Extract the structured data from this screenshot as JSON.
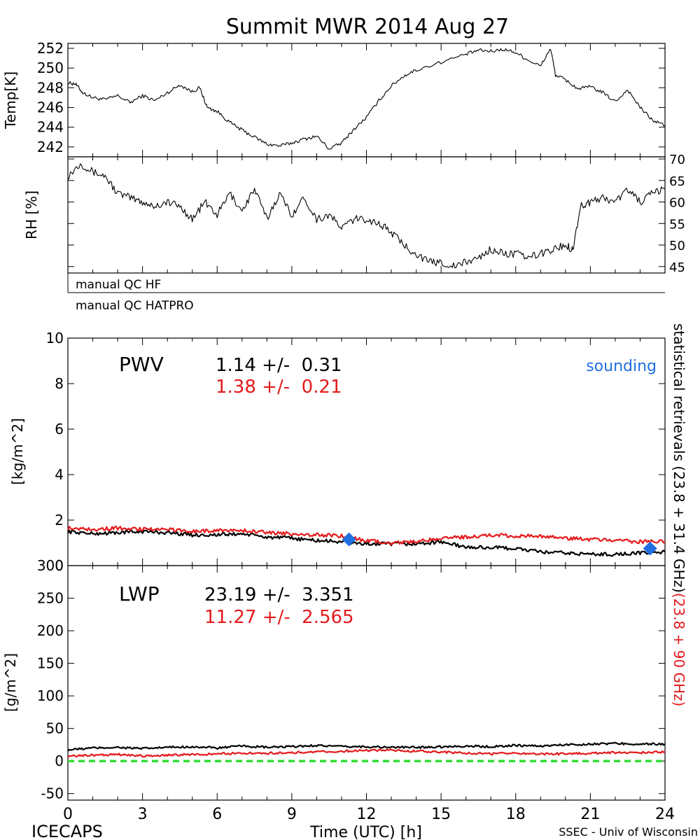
{
  "title": "Summit MWR 2014 Aug 27",
  "footer": {
    "left": "ICECAPS",
    "right": "SSEC - Univ of Wisconsin"
  },
  "qc": {
    "hf_label": "manual QC HF",
    "hatpro_label": "manual QC HATPRO"
  },
  "right_axis_label": {
    "black_part": "statistical retrievals (23.8 + 31.4 GHz)",
    "red_part": "(23.8 + 90 GHz)"
  },
  "colors": {
    "black": "#000000",
    "red": "#e41a1c",
    "blue": "#1f6fe0",
    "green": "#33dd33"
  },
  "chart_data": [
    {
      "id": "temp",
      "type": "line",
      "ylabel": "Temp[K]",
      "xlim": [
        0,
        24
      ],
      "ylim": [
        241,
        252.5
      ],
      "yticks": [
        242,
        244,
        246,
        248,
        250,
        252
      ],
      "series": [
        {
          "x": [
            0,
            0.3,
            0.6,
            1,
            1.5,
            2,
            2.5,
            3,
            3.5,
            4,
            4.5,
            5,
            5.3,
            5.6,
            6,
            6.5,
            7,
            7.5,
            8,
            8.5,
            9,
            9.5,
            10,
            10.5,
            11,
            11.5,
            12,
            12.5,
            13,
            13.5,
            14,
            15,
            16,
            16.5,
            17,
            17.5,
            18,
            18.5,
            19,
            19.4,
            19.6,
            20,
            20.5,
            21,
            21.5,
            22,
            22.5,
            23,
            23.5,
            24
          ],
          "y": [
            248.5,
            248.4,
            247.5,
            247,
            246.8,
            247.2,
            246.5,
            247.2,
            246.7,
            247.5,
            248.3,
            247.6,
            248,
            246,
            245.6,
            244.5,
            243.7,
            243,
            242.3,
            242.1,
            242.4,
            242.8,
            243.1,
            241.8,
            242.4,
            243.8,
            245,
            246.7,
            248.2,
            249.2,
            249.8,
            250.6,
            251.4,
            251.8,
            251.7,
            251.9,
            251.6,
            250.8,
            250.2,
            252,
            249.3,
            248.8,
            247.9,
            248.1,
            247.5,
            246.6,
            247.8,
            246,
            244.7,
            244.2
          ]
        }
      ]
    },
    {
      "id": "rh",
      "type": "line",
      "ylabel": "RH [%]",
      "xlim": [
        0,
        24
      ],
      "ylim": [
        43.5,
        70.5
      ],
      "yticks": [
        45,
        50,
        55,
        60,
        65,
        70
      ],
      "series": [
        {
          "x": [
            0,
            0.5,
            1,
            1.5,
            2,
            2.5,
            3,
            3.5,
            4,
            4.5,
            5,
            5.5,
            6,
            6.5,
            7,
            7.5,
            8,
            8.5,
            9,
            9.5,
            10,
            10.5,
            11,
            11.5,
            12,
            12.5,
            13,
            13.5,
            14,
            14.5,
            15,
            15.5,
            16,
            16.5,
            17,
            17.5,
            18,
            18.5,
            19,
            19.5,
            20,
            20.3,
            20.6,
            21,
            21.5,
            22,
            22.5,
            23,
            23.5,
            24
          ],
          "y": [
            66,
            69,
            67,
            66,
            62,
            61,
            60,
            59,
            60,
            59,
            56,
            60,
            57,
            62,
            58,
            63,
            56,
            62,
            57,
            61,
            56,
            57,
            54,
            56,
            56,
            55,
            53,
            50,
            48,
            46,
            46,
            45,
            46,
            47,
            49,
            48,
            48,
            47,
            48,
            49,
            50,
            49,
            59,
            60,
            61,
            60,
            63,
            60,
            62,
            63
          ]
        }
      ]
    },
    {
      "id": "pwv",
      "type": "line",
      "ylabel": "[kg/m^2]",
      "xlim": [
        0,
        24
      ],
      "ylim": [
        0,
        10
      ],
      "yticks": [
        0,
        2,
        4,
        6,
        8,
        10
      ],
      "annotations": {
        "name": "PWV",
        "black_stat": "1.14 +/-  0.31",
        "red_stat": "1.38 +/-  0.21",
        "sounding_label": "sounding"
      },
      "series": [
        {
          "color": "black",
          "x": [
            0,
            1,
            2,
            3,
            4,
            5,
            6,
            7,
            8,
            9,
            10,
            11,
            12,
            13,
            14,
            15,
            16,
            17,
            18,
            19,
            20,
            21,
            22,
            23,
            24
          ],
          "y": [
            1.5,
            1.4,
            1.45,
            1.5,
            1.45,
            1.35,
            1.35,
            1.4,
            1.25,
            1.2,
            1.1,
            1.05,
            0.95,
            0.95,
            0.95,
            1.05,
            0.8,
            0.8,
            0.75,
            0.6,
            0.55,
            0.5,
            0.5,
            0.55,
            0.6
          ]
        },
        {
          "color": "red",
          "x": [
            0,
            1,
            2,
            3,
            4,
            5,
            6,
            7,
            8,
            9,
            10,
            11,
            12,
            13,
            14,
            15,
            16,
            17,
            18,
            19,
            20,
            21,
            22,
            23,
            24
          ],
          "y": [
            1.65,
            1.6,
            1.65,
            1.6,
            1.6,
            1.5,
            1.55,
            1.55,
            1.45,
            1.4,
            1.35,
            1.3,
            1.1,
            1.0,
            1.05,
            1.2,
            1.25,
            1.35,
            1.3,
            1.3,
            1.2,
            1.15,
            1.1,
            1.05,
            1.05
          ]
        }
      ],
      "soundings": [
        {
          "x": 11.3,
          "y": 1.15
        },
        {
          "x": 23.4,
          "y": 0.75
        }
      ]
    },
    {
      "id": "lwp",
      "type": "line",
      "ylabel": "[g/m^2]",
      "xlabel": "Time (UTC) [h]",
      "xlim": [
        0,
        24
      ],
      "xticks": [
        0,
        3,
        6,
        9,
        12,
        15,
        18,
        21,
        24
      ],
      "ylim": [
        -60,
        300
      ],
      "yticks": [
        -50,
        0,
        50,
        100,
        150,
        200,
        250,
        300
      ],
      "annotations": {
        "name": "LWP",
        "black_stat": "23.19 +/-  3.351",
        "red_stat": "11.27 +/-  2.565"
      },
      "series": [
        {
          "color": "black",
          "x": [
            0,
            1,
            2,
            3,
            4,
            5,
            6,
            7,
            8,
            9,
            10,
            11,
            12,
            13,
            14,
            15,
            16,
            17,
            18,
            19,
            20,
            21,
            22,
            23,
            24
          ],
          "y": [
            17,
            20,
            21,
            19,
            21,
            22,
            20,
            23,
            21,
            22,
            24,
            22,
            22,
            21,
            21,
            22,
            23,
            22,
            24,
            23,
            25,
            26,
            27,
            26,
            26
          ]
        },
        {
          "color": "red",
          "x": [
            0,
            1,
            2,
            3,
            4,
            5,
            6,
            7,
            8,
            9,
            10,
            11,
            12,
            13,
            14,
            15,
            16,
            17,
            18,
            19,
            20,
            21,
            22,
            23,
            24
          ],
          "y": [
            7,
            9,
            10,
            8,
            9,
            10,
            11,
            12,
            12,
            13,
            14,
            15,
            16,
            17,
            15,
            14,
            12,
            11,
            12,
            11,
            11,
            12,
            13,
            13,
            14
          ]
        },
        {
          "color": "green",
          "dashed": true,
          "x": [
            0,
            24
          ],
          "y": [
            0,
            0
          ]
        }
      ]
    }
  ]
}
